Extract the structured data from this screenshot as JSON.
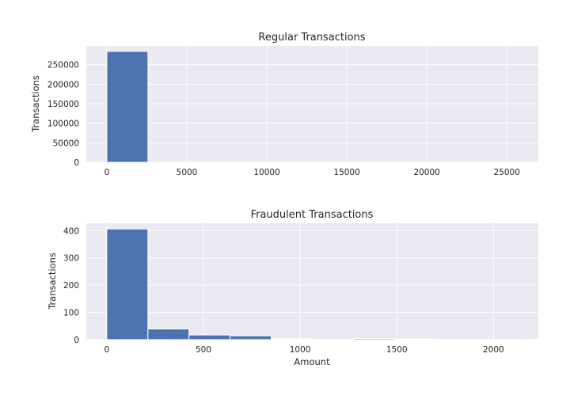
{
  "chart_data": [
    {
      "type": "bar",
      "title": "Regular Transactions",
      "xlabel": "",
      "ylabel": "Transactions",
      "grid": true,
      "xlim": [
        -1285,
        26970
      ],
      "ylim": [
        0,
        298000
      ],
      "xticks": [
        0,
        5000,
        10000,
        15000,
        20000,
        25000
      ],
      "yticks": [
        0,
        50000,
        100000,
        150000,
        200000,
        250000
      ],
      "bin_edges": [
        0,
        2569,
        5138,
        7707,
        10276,
        12845,
        15414,
        17983,
        20552,
        23121,
        25691
      ],
      "values": [
        284000,
        180,
        40,
        15,
        8,
        5,
        3,
        2,
        1,
        1
      ],
      "color": "#4c72b0"
    },
    {
      "type": "bar",
      "title": "Fraudulent Transactions",
      "xlabel": "Amount",
      "ylabel": "Transactions",
      "grid": true,
      "xlim": [
        -106,
        2232
      ],
      "ylim": [
        0,
        427
      ],
      "xticks": [
        0,
        500,
        1000,
        1500,
        2000
      ],
      "yticks": [
        0,
        100,
        200,
        300,
        400
      ],
      "bin_edges": [
        0,
        212.6,
        425.2,
        637.8,
        850.4,
        1063,
        1275.6,
        1488.2,
        1700.8,
        1913.4,
        2126
      ],
      "values": [
        406,
        39,
        17,
        14,
        3,
        1,
        4,
        2,
        1,
        1
      ],
      "color": "#4c72b0"
    }
  ]
}
